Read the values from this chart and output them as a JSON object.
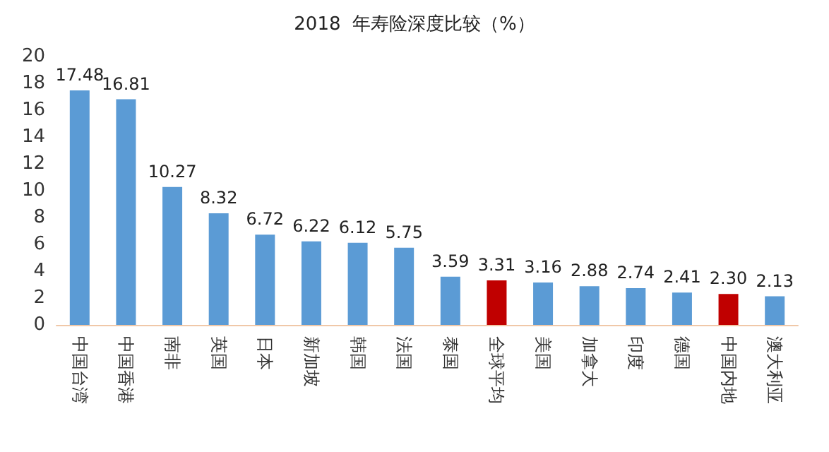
{
  "chart_data": {
    "type": "bar",
    "title": "2018  年寿险深度比较（%）",
    "categories": [
      "中国台湾",
      "中国香港",
      "南非",
      "英国",
      "日本",
      "新加坡",
      "韩国",
      "法国",
      "泰国",
      "全球平均",
      "美国",
      "加拿大",
      "印度",
      "德国",
      "中国内地",
      "澳大利亚"
    ],
    "values": [
      17.48,
      16.81,
      10.27,
      8.32,
      6.72,
      6.22,
      6.12,
      5.75,
      3.59,
      3.31,
      3.16,
      2.88,
      2.74,
      2.41,
      2.3,
      2.13
    ],
    "colors": [
      "#5b9bd5",
      "#5b9bd5",
      "#5b9bd5",
      "#5b9bd5",
      "#5b9bd5",
      "#5b9bd5",
      "#5b9bd5",
      "#5b9bd5",
      "#5b9bd5",
      "#c00000",
      "#5b9bd5",
      "#5b9bd5",
      "#5b9bd5",
      "#5b9bd5",
      "#c00000",
      "#5b9bd5"
    ],
    "value_labels": [
      "17.48",
      "16.81",
      "10.27",
      "8.32",
      "6.72",
      "6.22",
      "6.12",
      "5.75",
      "3.59",
      "3.31",
      "3.16",
      "2.88",
      "2.74",
      "2.41",
      "2.30",
      "2.13"
    ],
    "ylim": [
      0,
      20
    ],
    "yticks": [
      0,
      2,
      4,
      6,
      8,
      10,
      12,
      14,
      16,
      18,
      20
    ],
    "grid": false
  }
}
